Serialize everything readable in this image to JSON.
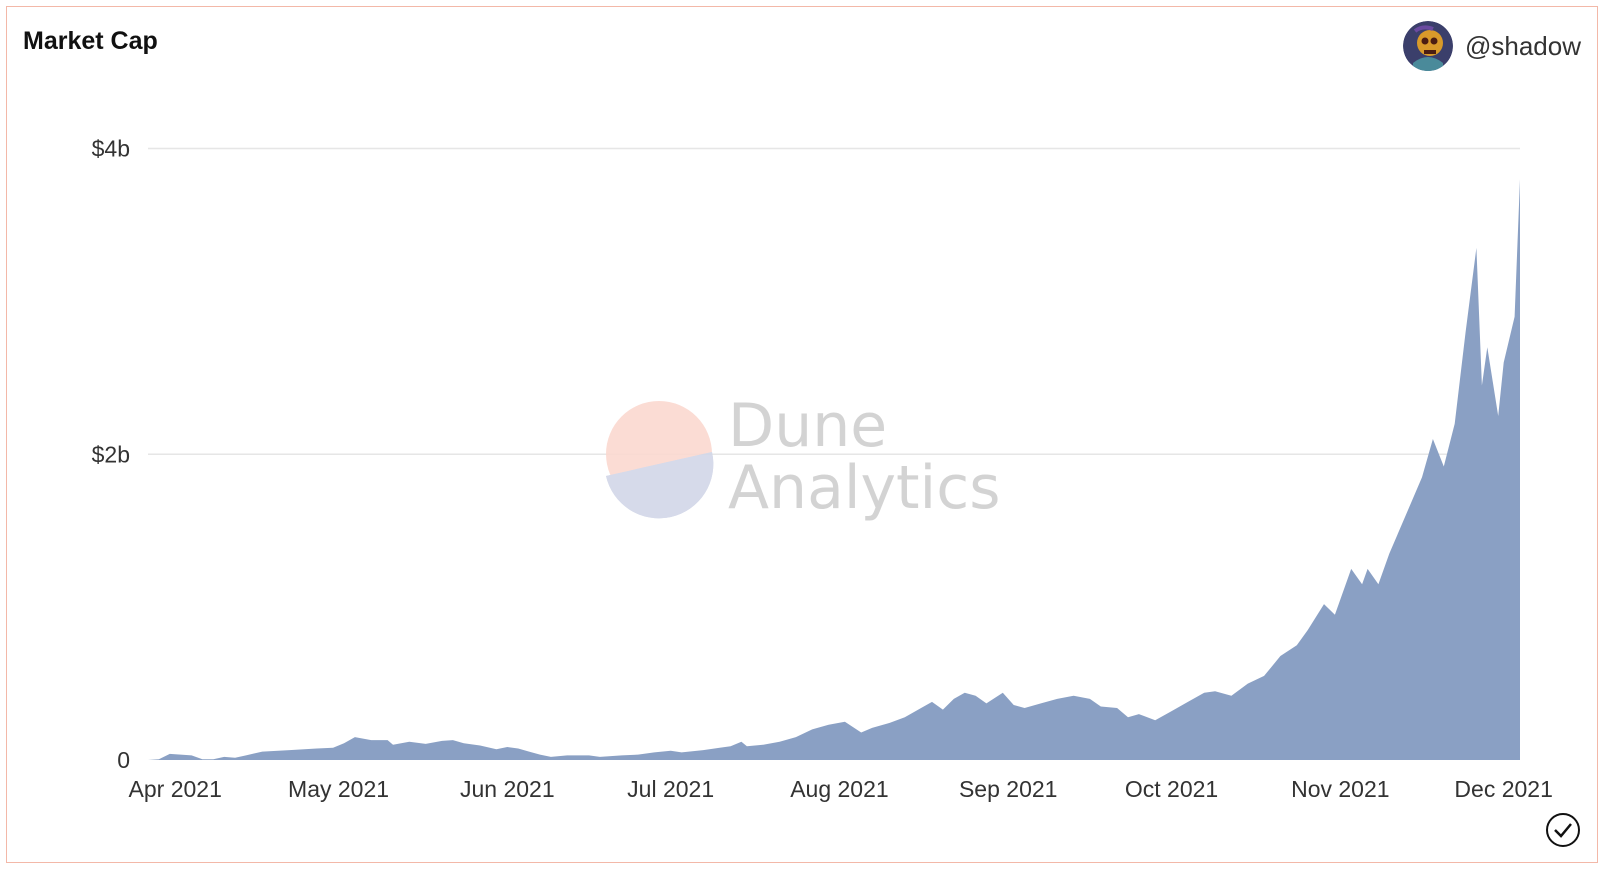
{
  "card": {
    "title": "Market Cap",
    "author": {
      "handle": "@shadow",
      "avatar_icon": "skull-avatar-icon"
    },
    "status_icon": "checkmark-circle-icon"
  },
  "watermark": {
    "line1": "Dune",
    "line2": "Analytics"
  },
  "colors": {
    "area": "#8aa0c4",
    "grid": "#e6e6e6",
    "border": "#f3b8a8",
    "logo_top": "#fbd9d0",
    "logo_bottom": "#d2d7e8",
    "watermark_text": "#cfcfcf"
  },
  "chart_data": {
    "type": "area",
    "title": "Market Cap",
    "xlabel": "",
    "ylabel": "",
    "x_start": "2021-03-27",
    "x_end": "2021-12-04",
    "ylim": [
      0,
      4.35
    ],
    "y_ticks": [
      {
        "value": 0,
        "label": "0"
      },
      {
        "value": 2,
        "label": "$2b"
      },
      {
        "value": 4,
        "label": "$4b"
      }
    ],
    "x_ticks": [
      {
        "date": "2021-04-01",
        "label": "Apr 2021"
      },
      {
        "date": "2021-05-01",
        "label": "May 2021"
      },
      {
        "date": "2021-06-01",
        "label": "Jun 2021"
      },
      {
        "date": "2021-07-01",
        "label": "Jul 2021"
      },
      {
        "date": "2021-08-01",
        "label": "Aug 2021"
      },
      {
        "date": "2021-09-01",
        "label": "Sep 2021"
      },
      {
        "date": "2021-10-01",
        "label": "Oct 2021"
      },
      {
        "date": "2021-11-01",
        "label": "Nov 2021"
      },
      {
        "date": "2021-12-01",
        "label": "Dec 2021"
      }
    ],
    "grid": true,
    "legend": "none",
    "points": [
      [
        "2021-03-27",
        0.0
      ],
      [
        "2021-03-29",
        0.005
      ],
      [
        "2021-03-31",
        0.04
      ],
      [
        "2021-04-04",
        0.03
      ],
      [
        "2021-04-06",
        0.005
      ],
      [
        "2021-04-08",
        0.005
      ],
      [
        "2021-04-10",
        0.02
      ],
      [
        "2021-04-12",
        0.015
      ],
      [
        "2021-04-14",
        0.03
      ],
      [
        "2021-04-17",
        0.055
      ],
      [
        "2021-04-22",
        0.065
      ],
      [
        "2021-04-27",
        0.075
      ],
      [
        "2021-04-30",
        0.08
      ],
      [
        "2021-05-02",
        0.11
      ],
      [
        "2021-05-04",
        0.15
      ],
      [
        "2021-05-07",
        0.13
      ],
      [
        "2021-05-10",
        0.13
      ],
      [
        "2021-05-11",
        0.1
      ],
      [
        "2021-05-14",
        0.12
      ],
      [
        "2021-05-17",
        0.105
      ],
      [
        "2021-05-20",
        0.125
      ],
      [
        "2021-05-22",
        0.13
      ],
      [
        "2021-05-24",
        0.11
      ],
      [
        "2021-05-27",
        0.095
      ],
      [
        "2021-05-30",
        0.07
      ],
      [
        "2021-06-01",
        0.085
      ],
      [
        "2021-06-03",
        0.075
      ],
      [
        "2021-06-05",
        0.055
      ],
      [
        "2021-06-07",
        0.035
      ],
      [
        "2021-06-09",
        0.02
      ],
      [
        "2021-06-12",
        0.03
      ],
      [
        "2021-06-16",
        0.03
      ],
      [
        "2021-06-18",
        0.02
      ],
      [
        "2021-06-22",
        0.03
      ],
      [
        "2021-06-25",
        0.035
      ],
      [
        "2021-06-28",
        0.05
      ],
      [
        "2021-07-01",
        0.06
      ],
      [
        "2021-07-03",
        0.05
      ],
      [
        "2021-07-07",
        0.065
      ],
      [
        "2021-07-10",
        0.08
      ],
      [
        "2021-07-12",
        0.09
      ],
      [
        "2021-07-14",
        0.12
      ],
      [
        "2021-07-15",
        0.09
      ],
      [
        "2021-07-18",
        0.1
      ],
      [
        "2021-07-21",
        0.12
      ],
      [
        "2021-07-24",
        0.15
      ],
      [
        "2021-07-27",
        0.2
      ],
      [
        "2021-07-30",
        0.23
      ],
      [
        "2021-08-02",
        0.25
      ],
      [
        "2021-08-05",
        0.18
      ],
      [
        "2021-08-07",
        0.21
      ],
      [
        "2021-08-10",
        0.24
      ],
      [
        "2021-08-13",
        0.28
      ],
      [
        "2021-08-16",
        0.34
      ],
      [
        "2021-08-18",
        0.38
      ],
      [
        "2021-08-20",
        0.33
      ],
      [
        "2021-08-22",
        0.4
      ],
      [
        "2021-08-24",
        0.44
      ],
      [
        "2021-08-26",
        0.42
      ],
      [
        "2021-08-28",
        0.37
      ],
      [
        "2021-08-31",
        0.44
      ],
      [
        "2021-09-02",
        0.36
      ],
      [
        "2021-09-04",
        0.34
      ],
      [
        "2021-09-07",
        0.37
      ],
      [
        "2021-09-10",
        0.4
      ],
      [
        "2021-09-13",
        0.42
      ],
      [
        "2021-09-16",
        0.4
      ],
      [
        "2021-09-18",
        0.35
      ],
      [
        "2021-09-21",
        0.34
      ],
      [
        "2021-09-23",
        0.28
      ],
      [
        "2021-09-25",
        0.3
      ],
      [
        "2021-09-28",
        0.26
      ],
      [
        "2021-10-01",
        0.32
      ],
      [
        "2021-10-04",
        0.38
      ],
      [
        "2021-10-07",
        0.44
      ],
      [
        "2021-10-09",
        0.45
      ],
      [
        "2021-10-12",
        0.42
      ],
      [
        "2021-10-15",
        0.5
      ],
      [
        "2021-10-18",
        0.55
      ],
      [
        "2021-10-21",
        0.68
      ],
      [
        "2021-10-24",
        0.75
      ],
      [
        "2021-10-26",
        0.85
      ],
      [
        "2021-10-29",
        1.02
      ],
      [
        "2021-10-31",
        0.95
      ],
      [
        "2021-11-03",
        1.25
      ],
      [
        "2021-11-05",
        1.15
      ],
      [
        "2021-11-06",
        1.25
      ],
      [
        "2021-11-08",
        1.15
      ],
      [
        "2021-11-10",
        1.35
      ],
      [
        "2021-11-13",
        1.6
      ],
      [
        "2021-11-16",
        1.85
      ],
      [
        "2021-11-18",
        2.1
      ],
      [
        "2021-11-20",
        1.92
      ],
      [
        "2021-11-22",
        2.2
      ],
      [
        "2021-11-24",
        2.8
      ],
      [
        "2021-11-26",
        3.35
      ],
      [
        "2021-11-27",
        2.45
      ],
      [
        "2021-11-28",
        2.7
      ],
      [
        "2021-11-30",
        2.25
      ],
      [
        "2021-12-01",
        2.6
      ],
      [
        "2021-12-03",
        2.9
      ],
      [
        "2021-12-04",
        3.8
      ]
    ]
  }
}
